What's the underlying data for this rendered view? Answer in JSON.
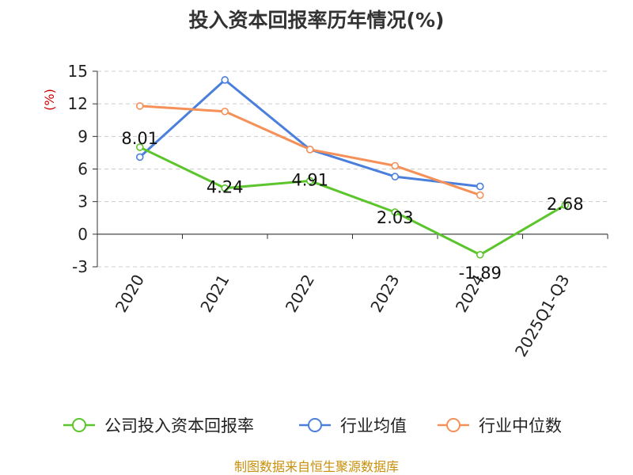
{
  "chart_data": {
    "type": "line",
    "title": "投入资本回报率历年情况(%)",
    "ylabel": "(%)",
    "xlabel": "",
    "categories": [
      "2020",
      "2021",
      "2022",
      "2023",
      "2024",
      "2025Q1-Q3"
    ],
    "yticks": [
      15,
      12,
      9,
      6,
      3,
      0,
      -3
    ],
    "ylim": [
      -3,
      15
    ],
    "grid": true,
    "legend_position": "bottom",
    "series": [
      {
        "name": "公司投入资本回报率",
        "color": "#5cc52c",
        "values": [
          8.01,
          4.24,
          4.91,
          2.03,
          -1.89,
          2.68
        ],
        "labels": [
          "8.01",
          "4.24",
          "4.91",
          "2.03",
          "-1.89",
          "2.68"
        ],
        "show_labels": true
      },
      {
        "name": "行业均值",
        "color": "#4a7fdc",
        "values": [
          7.1,
          14.2,
          7.8,
          5.3,
          4.4,
          null
        ],
        "show_labels": false
      },
      {
        "name": "行业中位数",
        "color": "#f59058",
        "values": [
          11.8,
          11.3,
          7.8,
          6.3,
          3.6,
          null
        ],
        "show_labels": false
      }
    ],
    "source": "制图数据来自恒生聚源数据库"
  }
}
